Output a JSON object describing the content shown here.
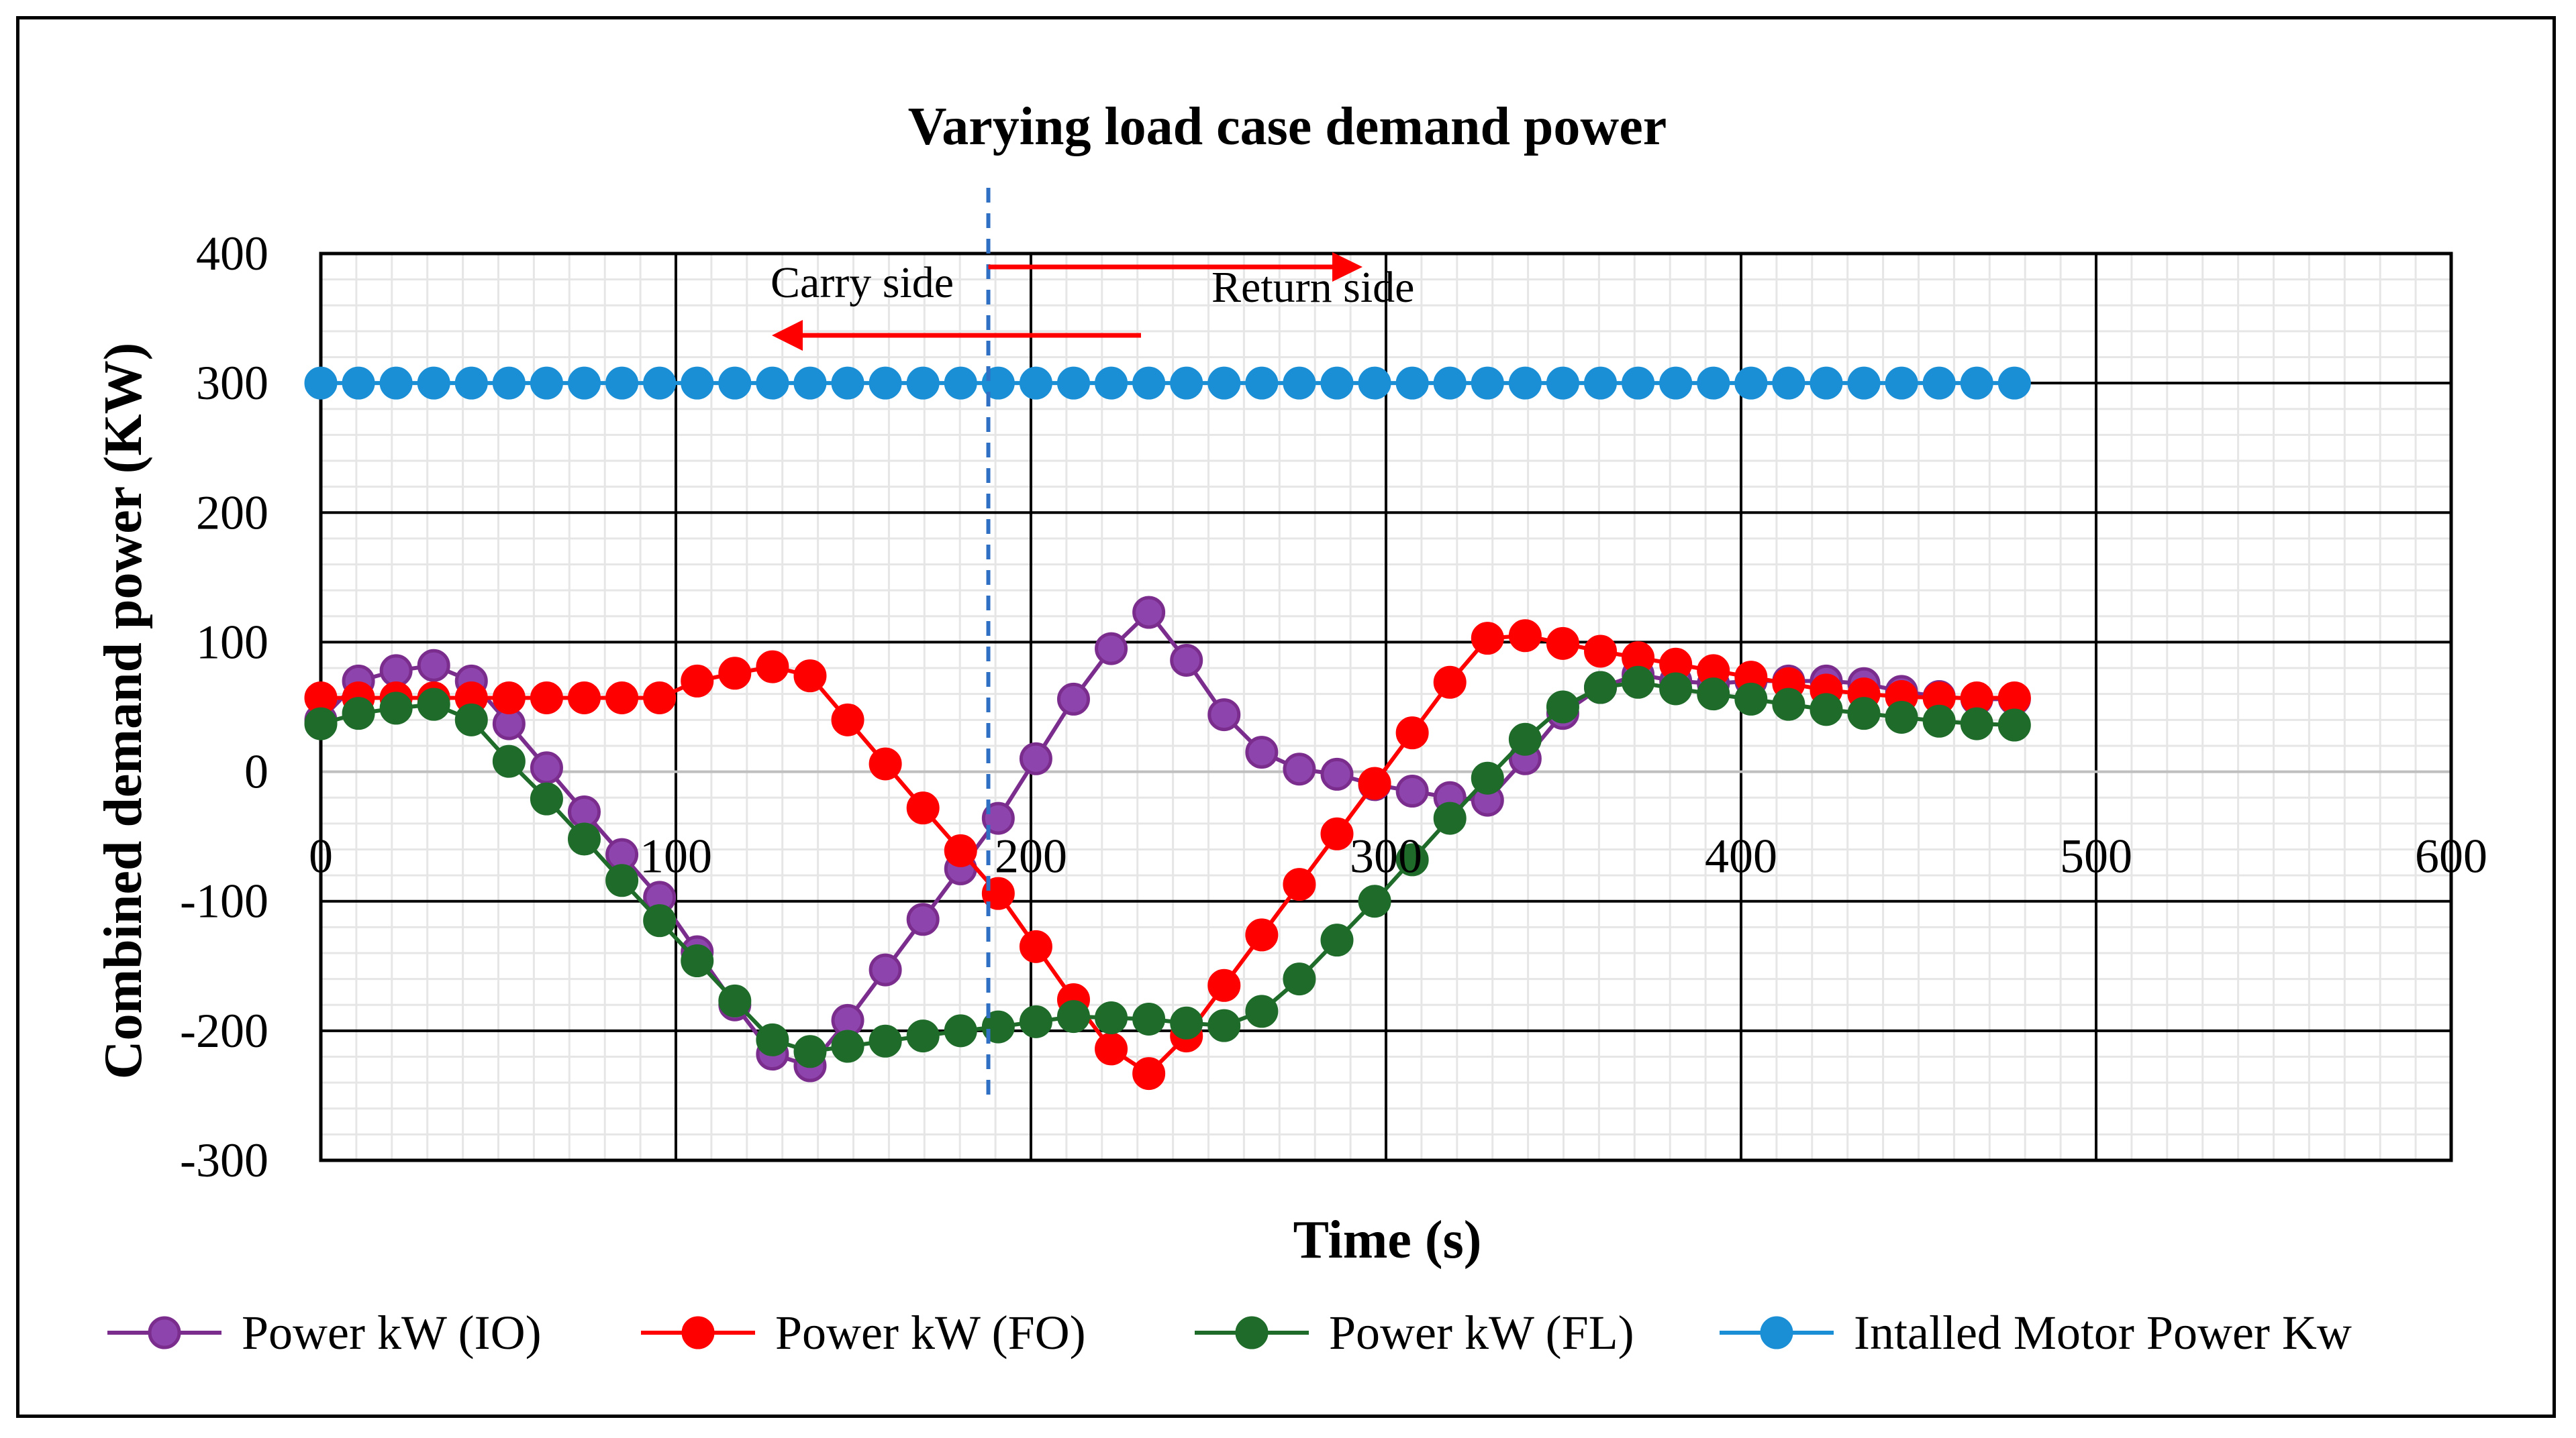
{
  "chart_data": {
    "type": "line",
    "title": "Varying load case demand power",
    "xlabel": "Time (s)",
    "ylabel": "Combined demand power (KW)",
    "xlim": [
      0,
      600
    ],
    "ylim": [
      -300,
      400
    ],
    "xticks": [
      0,
      100,
      200,
      300,
      400,
      500,
      600
    ],
    "yticks": [
      400,
      300,
      200,
      100,
      0,
      -100,
      -200,
      -300
    ],
    "xtick_labels": [
      "0",
      "100",
      "200",
      "300",
      "400",
      "500",
      "600"
    ],
    "ytick_labels": [
      "400",
      "300",
      "200",
      "100",
      "0",
      "-100",
      "-200",
      "-300"
    ],
    "grid": "on",
    "legend_position": "bottom",
    "x": [
      0,
      10.6,
      21.2,
      31.8,
      42.4,
      53,
      63.6,
      74.2,
      84.8,
      95.4,
      106,
      116.6,
      127.2,
      137.8,
      148.4,
      159,
      169.6,
      180.2,
      190.8,
      201.4,
      212,
      222.6,
      233.2,
      243.8,
      254.4,
      265,
      275.6,
      286.2,
      296.8,
      307.4,
      318,
      328.6,
      339.2,
      349.8,
      360.4,
      371,
      381.6,
      392.2,
      402.8,
      413.4,
      424,
      434.6,
      445.2,
      455.8,
      466.4,
      477
    ],
    "series": [
      {
        "name": "Power kW (IO)",
        "color": "#8e44ad",
        "line_color": "#7b2d8e",
        "values": [
          40,
          70,
          78,
          82,
          70,
          37,
          3,
          -31,
          -64,
          -97,
          -139,
          -180,
          -218,
          -227,
          -192,
          -153,
          -114,
          -75,
          -36,
          10,
          56,
          95,
          123,
          86,
          44,
          15,
          2,
          -2,
          -10,
          -15,
          -20,
          -22,
          10,
          45,
          65,
          75,
          70,
          68,
          70,
          70,
          70,
          68,
          62,
          58,
          56,
          56
        ]
      },
      {
        "name": "Power kW (FO)",
        "color": "#ff0000",
        "line_color": "#ff0000",
        "values": [
          57,
          57,
          57,
          57,
          57,
          57,
          57,
          57,
          57,
          57,
          70,
          76,
          81,
          74,
          40,
          6,
          -28,
          -61,
          -94,
          -135,
          -176,
          -214,
          -233,
          -204,
          -165,
          -126,
          -87,
          -48,
          -9,
          30,
          69,
          103,
          105,
          99,
          93,
          88,
          83,
          78,
          73,
          68,
          63,
          60,
          58,
          57,
          57,
          57
        ]
      },
      {
        "name": "Power kW (FL)",
        "color": "#1e6b2a",
        "line_color": "#1e6b2a",
        "values": [
          37,
          45,
          49,
          52,
          40,
          8,
          -21,
          -52,
          -84,
          -115,
          -146,
          -177,
          -207,
          -216,
          -212,
          -208,
          -204,
          -200,
          -197,
          -193,
          -189,
          -190,
          -191,
          -194,
          -196,
          -185,
          -160,
          -130,
          -100,
          -68,
          -36,
          -5,
          25,
          50,
          65,
          69,
          64,
          60,
          56,
          52,
          48,
          45,
          42,
          39,
          37,
          36
        ]
      },
      {
        "name": "Intalled Motor Power Kw",
        "color": "#1a8fd6",
        "line_color": "#1a8fd6",
        "values": [
          300,
          300,
          300,
          300,
          300,
          300,
          300,
          300,
          300,
          300,
          300,
          300,
          300,
          300,
          300,
          300,
          300,
          300,
          300,
          300,
          300,
          300,
          300,
          300,
          300,
          300,
          300,
          300,
          300,
          300,
          300,
          300,
          300,
          300,
          300,
          300,
          300,
          300,
          300,
          300,
          300,
          300,
          300,
          300,
          300,
          300
        ]
      }
    ],
    "annotations": {
      "divider_x": 188,
      "carry_label": "Carry side",
      "return_label": "Return side"
    }
  }
}
